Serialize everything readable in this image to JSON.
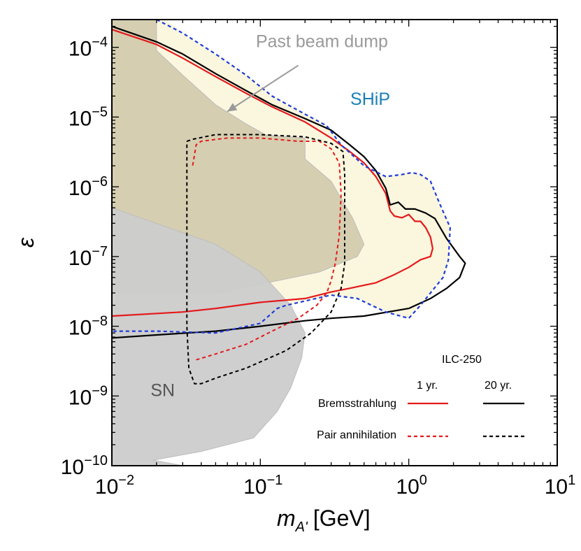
{
  "chart_data": {
    "type": "line",
    "title": "",
    "xlabel_main": "m",
    "xlabel_sub": "A'",
    "xlabel_unit": "[GeV]",
    "ylabel": "ε",
    "xscale": "log",
    "yscale": "log",
    "xlim": [
      0.01,
      10
    ],
    "ylim": [
      1e-10,
      0.00025
    ],
    "x_ticks": [
      {
        "value": 0.01,
        "base": "10",
        "exp": "−2"
      },
      {
        "value": 0.1,
        "base": "10",
        "exp": "−1"
      },
      {
        "value": 1,
        "base": "10",
        "exp": "0"
      },
      {
        "value": 10,
        "base": "10",
        "exp": "1"
      }
    ],
    "y_ticks": [
      {
        "value": 1e-10,
        "base": "10",
        "exp": "−10"
      },
      {
        "value": 1e-09,
        "base": "10",
        "exp": "−9"
      },
      {
        "value": 1e-08,
        "base": "10",
        "exp": "−8"
      },
      {
        "value": 1e-07,
        "base": "10",
        "exp": "−7"
      },
      {
        "value": 1e-06,
        "base": "10",
        "exp": "−6"
      },
      {
        "value": 1e-05,
        "base": "10",
        "exp": "−5"
      },
      {
        "value": 0.0001,
        "base": "10",
        "exp": "−4"
      }
    ],
    "regions": [
      {
        "name": "Past beam dump",
        "color": "#ccc4a4",
        "opacity": 0.8,
        "points": [
          [
            0.01,
            0.00025
          ],
          [
            0.02,
            0.00025
          ],
          [
            0.02,
            9e-05
          ],
          [
            0.03,
            4e-05
          ],
          [
            0.05,
            1.5e-05
          ],
          [
            0.08,
            8e-06
          ],
          [
            0.11,
            5.5e-06
          ],
          [
            0.2,
            5e-06
          ],
          [
            0.2,
            2.5e-06
          ],
          [
            0.3,
            1.2e-06
          ],
          [
            0.42,
            3.5e-07
          ],
          [
            0.5,
            1.5e-07
          ],
          [
            0.45,
            1e-07
          ],
          [
            0.25,
            6e-08
          ],
          [
            0.1,
            4e-08
          ],
          [
            0.05,
            3e-08
          ],
          [
            0.01,
            3e-08
          ]
        ]
      },
      {
        "name": "SN",
        "color": "#cccccc",
        "opacity": 0.95,
        "points": [
          [
            0.01,
            5e-07
          ],
          [
            0.05,
            1.5e-07
          ],
          [
            0.1,
            6e-08
          ],
          [
            0.16,
            2e-08
          ],
          [
            0.2,
            8e-09
          ],
          [
            0.19,
            3.5e-09
          ],
          [
            0.16,
            1.3e-09
          ],
          [
            0.13,
            6e-10
          ],
          [
            0.09,
            2.5e-10
          ],
          [
            0.04,
            1.6e-10
          ],
          [
            0.019,
            1.2e-10
          ],
          [
            0.03,
            1e-10
          ],
          [
            0.01,
            1e-10
          ]
        ]
      },
      {
        "name": "SHiP",
        "color": "#fbf5dc",
        "opacity": 0.95,
        "points": [
          [
            0.01,
            0.00025
          ],
          [
            0.023,
            0.00025
          ],
          [
            0.03,
            0.00016
          ],
          [
            0.05,
            8e-05
          ],
          [
            0.08,
            4e-05
          ],
          [
            0.12,
            2e-05
          ],
          [
            0.2,
            1.1e-05
          ],
          [
            0.28,
            7.5e-06
          ],
          [
            0.35,
            4e-06
          ],
          [
            0.5,
            2e-06
          ],
          [
            0.7,
            1.4e-06
          ],
          [
            0.9,
            1.5e-06
          ],
          [
            1.05,
            1.6e-06
          ],
          [
            1.2,
            1.5e-06
          ],
          [
            1.4,
            1.2e-06
          ],
          [
            1.6,
            6e-07
          ],
          [
            1.9,
            2.6e-07
          ],
          [
            1.85,
            9e-08
          ],
          [
            1.7,
            5e-08
          ],
          [
            1.4,
            3e-08
          ],
          [
            1.2,
            2e-08
          ],
          [
            1.0,
            1.3e-08
          ],
          [
            0.7,
            1.6e-08
          ],
          [
            0.45,
            2.5e-08
          ],
          [
            0.3,
            2.8e-08
          ],
          [
            0.18,
            2.2e-08
          ],
          [
            0.13,
            1.8e-08
          ],
          [
            0.1,
            1.1e-08
          ],
          [
            0.05,
            8e-09
          ],
          [
            0.02,
            8.5e-09
          ],
          [
            0.01,
            8.5e-09
          ]
        ]
      }
    ],
    "series": [
      {
        "name": "Bremsstrahlung 1 yr.",
        "color": "#e41a1c",
        "dash": "solid",
        "width": 2.2,
        "points": [
          [
            0.01,
            0.00018
          ],
          [
            0.02,
            0.00011
          ],
          [
            0.03,
            7e-05
          ],
          [
            0.05,
            3.8e-05
          ],
          [
            0.08,
            2.2e-05
          ],
          [
            0.12,
            1.4e-05
          ],
          [
            0.2,
            8.5e-06
          ],
          [
            0.3,
            5e-06
          ],
          [
            0.4,
            3.2e-06
          ],
          [
            0.5,
            2.2e-06
          ],
          [
            0.6,
            1.4e-06
          ],
          [
            0.7,
            8e-07
          ],
          [
            0.75,
            4.5e-07
          ],
          [
            0.8,
            3.8e-07
          ],
          [
            0.9,
            3.6e-07
          ],
          [
            1.0,
            4e-07
          ],
          [
            1.1,
            3.2e-07
          ],
          [
            1.2,
            3.2e-07
          ],
          [
            1.3,
            2.6e-07
          ],
          [
            1.4,
            1.9e-07
          ],
          [
            1.45,
            1.3e-07
          ],
          [
            1.4,
            1e-07
          ],
          [
            1.2,
            9e-08
          ],
          [
            1.0,
            7e-08
          ],
          [
            0.8,
            5.5e-08
          ],
          [
            0.6,
            4.2e-08
          ],
          [
            0.4,
            3.5e-08
          ],
          [
            0.3,
            3.1e-08
          ],
          [
            0.2,
            2.5e-08
          ],
          [
            0.1,
            2.2e-08
          ],
          [
            0.05,
            1.8e-08
          ],
          [
            0.03,
            1.6e-08
          ],
          [
            0.01,
            1.4e-08
          ]
        ]
      },
      {
        "name": "Bremsstrahlung 20 yr.",
        "color": "#000000",
        "dash": "solid",
        "width": 2.2,
        "points": [
          [
            0.01,
            0.0002
          ],
          [
            0.02,
            0.00012
          ],
          [
            0.03,
            8e-05
          ],
          [
            0.05,
            4.2e-05
          ],
          [
            0.08,
            2.4e-05
          ],
          [
            0.12,
            1.5e-05
          ],
          [
            0.2,
            9.5e-06
          ],
          [
            0.3,
            6.5e-06
          ],
          [
            0.4,
            4e-06
          ],
          [
            0.5,
            2.7e-06
          ],
          [
            0.6,
            1.7e-06
          ],
          [
            0.7,
            9.5e-07
          ],
          [
            0.75,
            5.5e-07
          ],
          [
            0.85,
            6e-07
          ],
          [
            0.95,
            4.8e-07
          ],
          [
            1.1,
            4.8e-07
          ],
          [
            1.3,
            4.2e-07
          ],
          [
            1.5,
            3.5e-07
          ],
          [
            1.8,
            1.8e-07
          ],
          [
            2.2,
            1e-07
          ],
          [
            2.4,
            8e-08
          ],
          [
            2.2,
            5e-08
          ],
          [
            1.8,
            3.5e-08
          ],
          [
            1.4,
            2.5e-08
          ],
          [
            1.0,
            1.8e-08
          ],
          [
            0.5,
            1.4e-08
          ],
          [
            0.3,
            1.3e-08
          ],
          [
            0.2,
            1.2e-08
          ],
          [
            0.1,
            1e-08
          ],
          [
            0.05,
            8.5e-09
          ],
          [
            0.02,
            7.5e-09
          ],
          [
            0.01,
            6.8e-09
          ]
        ]
      },
      {
        "name": "Pair annihilation 1 yr.",
        "color": "#e41a1c",
        "dash": "dashed",
        "width": 2.0,
        "points": [
          [
            0.037,
            3.3e-09
          ],
          [
            0.05,
            4e-09
          ],
          [
            0.08,
            5.5e-09
          ],
          [
            0.12,
            8.5e-09
          ],
          [
            0.18,
            1.3e-08
          ],
          [
            0.24,
            2e-08
          ],
          [
            0.28,
            3e-08
          ],
          [
            0.3,
            4.5e-08
          ],
          [
            0.32,
            8e-08
          ],
          [
            0.34,
            2e-07
          ],
          [
            0.35,
            8e-07
          ],
          [
            0.34,
            2.2e-06
          ],
          [
            0.3,
            3.5e-06
          ],
          [
            0.25,
            4.5e-06
          ],
          [
            0.18,
            4.5e-06
          ],
          [
            0.1,
            5e-06
          ],
          [
            0.06,
            5e-06
          ],
          [
            0.04,
            4.5e-06
          ],
          [
            0.037,
            4e-06
          ],
          [
            0.035,
            2e-06
          ]
        ]
      },
      {
        "name": "Pair annihilation 20 yr.",
        "color": "#000000",
        "dash": "dashed",
        "width": 2.0,
        "points": [
          [
            0.032,
            4.5e-06
          ],
          [
            0.035,
            4.8e-06
          ],
          [
            0.05,
            5.6e-06
          ],
          [
            0.1,
            5.6e-06
          ],
          [
            0.2,
            5.2e-06
          ],
          [
            0.3,
            4.2e-06
          ],
          [
            0.36,
            3.2e-06
          ],
          [
            0.37,
            1.5e-06
          ],
          [
            0.37,
            8e-08
          ],
          [
            0.35,
            3.5e-08
          ],
          [
            0.3,
            1.6e-08
          ],
          [
            0.22,
            8e-09
          ],
          [
            0.15,
            4.5e-09
          ],
          [
            0.08,
            2.5e-09
          ],
          [
            0.05,
            1.8e-09
          ],
          [
            0.04,
            1.5e-09
          ],
          [
            0.036,
            1.5e-09
          ],
          [
            0.033,
            2.5e-09
          ],
          [
            0.032,
            1e-08
          ],
          [
            0.032,
            4.5e-06
          ]
        ]
      },
      {
        "name": "SHiP",
        "color": "#1f3cd9",
        "dash": "dashed",
        "width": 2.2,
        "points": [
          [
            0.02,
            0.00025
          ],
          [
            0.03,
            0.00016
          ],
          [
            0.05,
            8e-05
          ],
          [
            0.08,
            4e-05
          ],
          [
            0.12,
            2e-05
          ],
          [
            0.2,
            1.1e-05
          ],
          [
            0.28,
            7.5e-06
          ],
          [
            0.35,
            4e-06
          ],
          [
            0.5,
            2e-06
          ],
          [
            0.7,
            1.4e-06
          ],
          [
            0.9,
            1.5e-06
          ],
          [
            1.05,
            1.6e-06
          ],
          [
            1.2,
            1.5e-06
          ],
          [
            1.4,
            1.2e-06
          ],
          [
            1.6,
            6e-07
          ],
          [
            1.9,
            2.6e-07
          ],
          [
            1.85,
            9e-08
          ],
          [
            1.7,
            5e-08
          ],
          [
            1.4,
            3e-08
          ],
          [
            1.2,
            2e-08
          ],
          [
            1.0,
            1.3e-08
          ],
          [
            0.7,
            1.6e-08
          ],
          [
            0.45,
            2.5e-08
          ],
          [
            0.3,
            2.8e-08
          ],
          [
            0.2,
            2.3e-08
          ],
          [
            0.15,
            2e-08
          ],
          [
            0.13,
            1.8e-08
          ],
          [
            0.1,
            1.1e-08
          ],
          [
            0.05,
            8e-09
          ],
          [
            0.02,
            8.5e-09
          ],
          [
            0.01,
            8.5e-09
          ]
        ]
      }
    ],
    "annotations": [
      {
        "text": "Past beam dump",
        "color": "#9a9a9a",
        "x": 0.26,
        "y": 0.0001
      },
      {
        "text": "SHiP",
        "color": "#1a7fb8",
        "x": 0.55,
        "y": 1.5e-05
      },
      {
        "text": "SN",
        "color": "#555555",
        "x": 0.022,
        "y": 1e-09
      }
    ],
    "arrow": {
      "from": [
        0.18,
        5.5e-05
      ],
      "to": [
        0.06,
        1.2e-05
      ],
      "color": "#9a9a9a"
    },
    "legend": {
      "location": "bottom-right",
      "title": "ILC-250",
      "col_headers": [
        "1 yr.",
        "20 yr."
      ],
      "rows": [
        "Bremsstrahlung",
        "Pair annihilation"
      ]
    }
  }
}
